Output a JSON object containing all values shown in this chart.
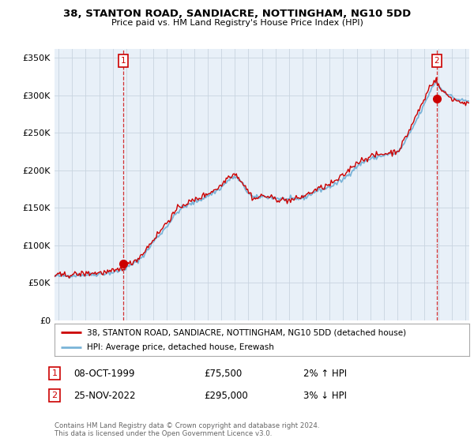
{
  "title": "38, STANTON ROAD, SANDIACRE, NOTTINGHAM, NG10 5DD",
  "subtitle": "Price paid vs. HM Land Registry's House Price Index (HPI)",
  "ylabel_ticks": [
    "£0",
    "£50K",
    "£100K",
    "£150K",
    "£200K",
    "£250K",
    "£300K",
    "£350K"
  ],
  "ylim": [
    0,
    362000
  ],
  "yticks": [
    0,
    50000,
    100000,
    150000,
    200000,
    250000,
    300000,
    350000
  ],
  "xlim_start": 1994.7,
  "xlim_end": 2025.3,
  "sale1": {
    "date_num": 1999.78,
    "price": 75500,
    "label": "1"
  },
  "sale2": {
    "date_num": 2022.9,
    "price": 295000,
    "label": "2"
  },
  "legend_line1": "38, STANTON ROAD, SANDIACRE, NOTTINGHAM, NG10 5DD (detached house)",
  "legend_line2": "HPI: Average price, detached house, Erewash",
  "note1_label": "1",
  "note1_date": "08-OCT-1999",
  "note1_price": "£75,500",
  "note1_hpi": "2% ↑ HPI",
  "note2_label": "2",
  "note2_date": "25-NOV-2022",
  "note2_price": "£295,000",
  "note2_hpi": "3% ↓ HPI",
  "footer": "Contains HM Land Registry data © Crown copyright and database right 2024.\nThis data is licensed under the Open Government Licence v3.0.",
  "hpi_color": "#7ab4d8",
  "price_color": "#cc0000",
  "bg_color": "#ffffff",
  "plot_bg_color": "#e8f0f8",
  "grid_color": "#c8d4e0"
}
